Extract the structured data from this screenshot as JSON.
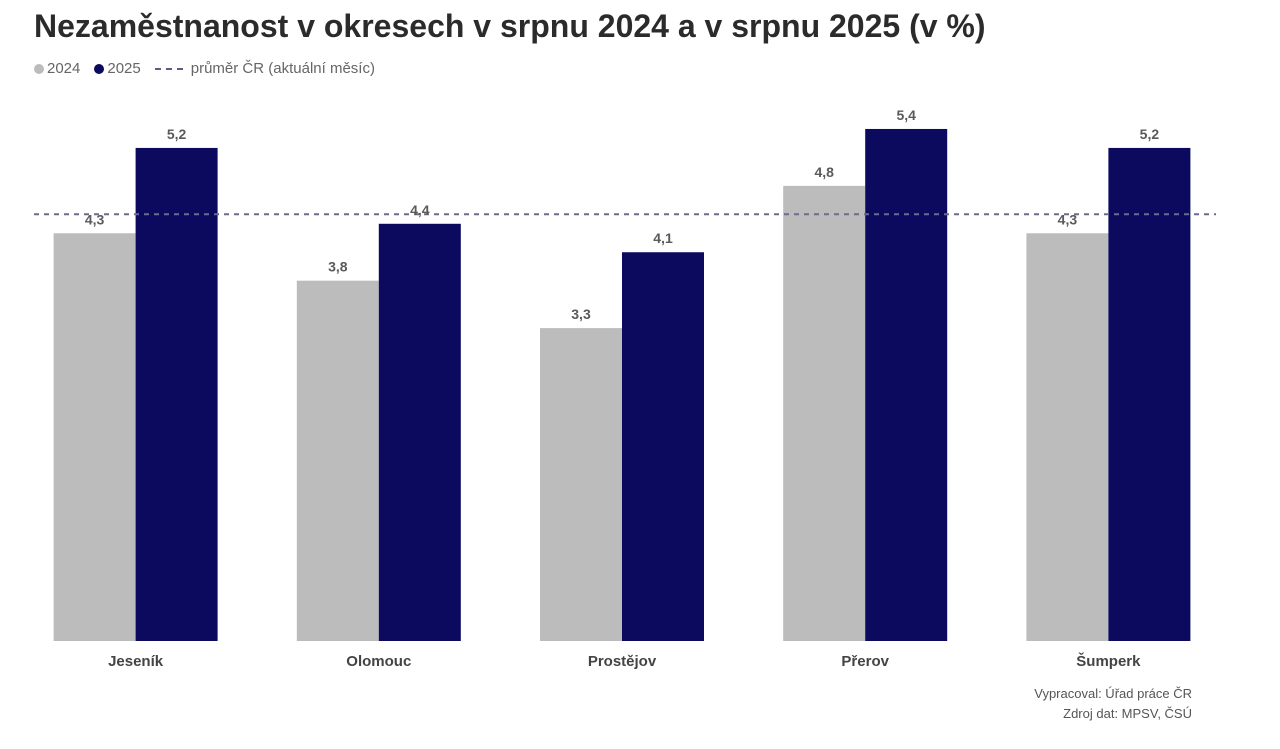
{
  "title": "Nezaměstnanost v okresech v srpnu 2024 a v srpnu 2025 (v %)",
  "legend": {
    "series_2024": "2024",
    "series_2025": "2025",
    "average": "průměr ČR (aktuální měsíc)"
  },
  "colors": {
    "series_2024": "#bcbcbc",
    "series_2025": "#0b0a5e",
    "average_line": "#6b6b8f"
  },
  "source": {
    "line1": "Vypracoval: Úřad práce ČR",
    "line2": "Zdroj dat: MPSV, ČSÚ"
  },
  "chart_data": {
    "type": "bar",
    "title": "Nezaměstnanost v okresech v srpnu 2024 a v srpnu 2025 (v %)",
    "categories": [
      "Jeseník",
      "Olomouc",
      "Prostějov",
      "Přerov",
      "Šumperk"
    ],
    "series": [
      {
        "name": "2024",
        "values": [
          4.3,
          3.8,
          3.3,
          4.8,
          4.3
        ],
        "labels": [
          "4,3",
          "3,8",
          "3,3",
          "4,8",
          "4,3"
        ]
      },
      {
        "name": "2025",
        "values": [
          5.2,
          4.4,
          4.1,
          5.4,
          5.2
        ],
        "labels": [
          "5,2",
          "4,4",
          "4,1",
          "5,4",
          "5,2"
        ]
      }
    ],
    "reference_line": {
      "name": "průměr ČR (aktuální měsíc)",
      "value": 4.5,
      "style": "dashed"
    },
    "ylim": [
      0,
      5.6
    ],
    "grid": false,
    "legend_position": "top-left"
  }
}
